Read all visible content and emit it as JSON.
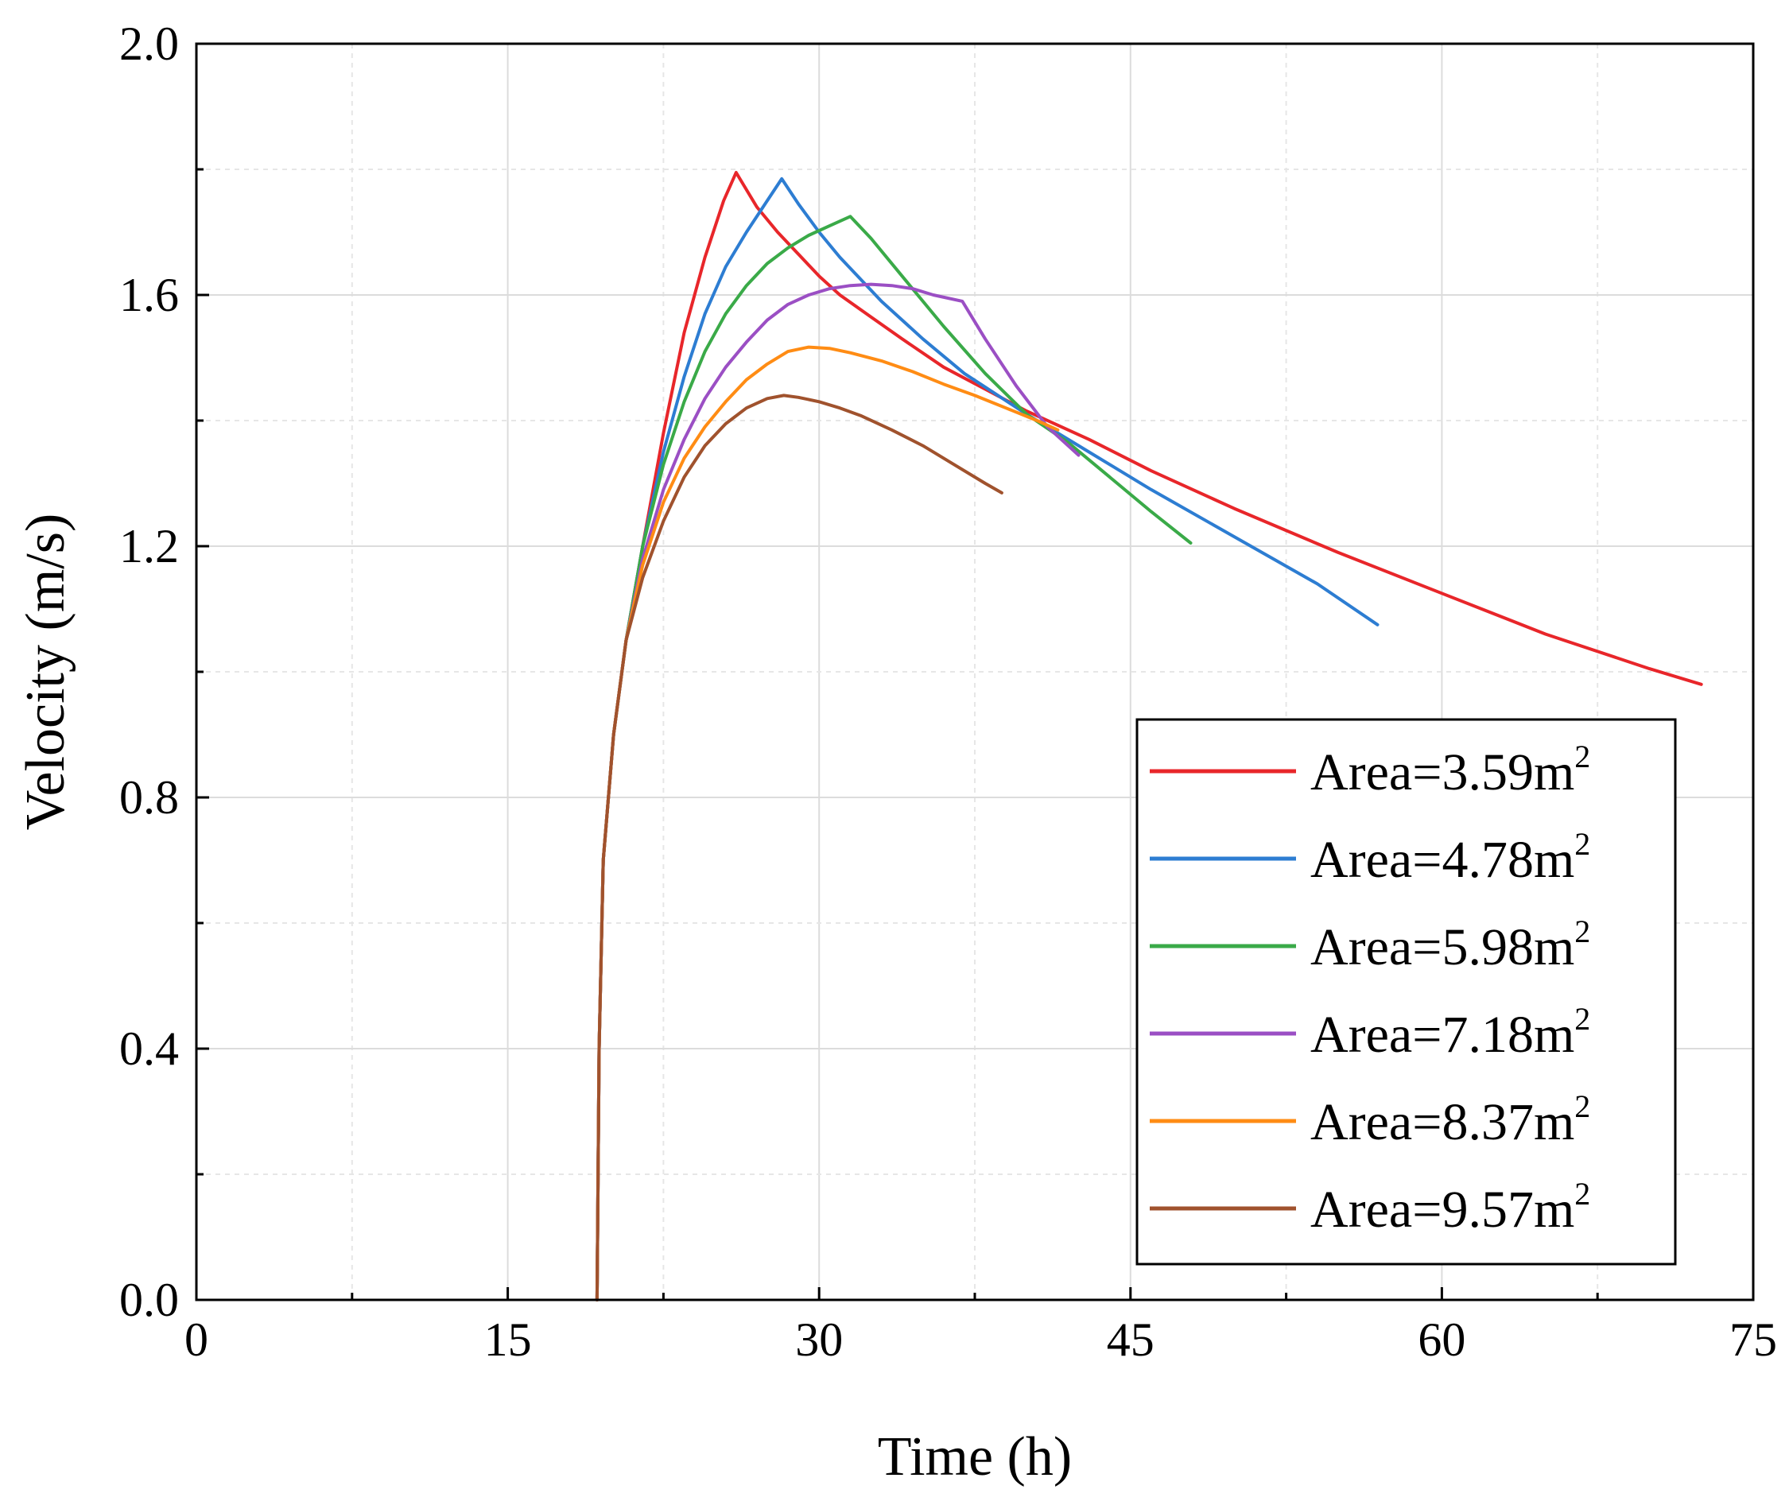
{
  "chart_data": {
    "type": "line",
    "title": "",
    "xlabel": "Time (h)",
    "ylabel": "Velocity (m/s)",
    "xlim": [
      0,
      75
    ],
    "ylim": [
      0,
      2.0
    ],
    "x_major_ticks": [
      0,
      15,
      30,
      45,
      60,
      75
    ],
    "x_tick_labels": [
      "0",
      "15",
      "30",
      "45",
      "60",
      "75"
    ],
    "x_minor_ticks": [
      7.5,
      22.5,
      37.5,
      52.5,
      67.5
    ],
    "y_major_ticks": [
      0,
      0.4,
      0.8,
      1.2,
      1.6,
      2.0
    ],
    "y_tick_labels": [
      "0.0",
      "0.4",
      "0.8",
      "1.2",
      "1.6",
      "2.0"
    ],
    "y_minor_ticks": [
      0.2,
      0.6,
      1.0,
      1.4,
      1.8
    ],
    "grid": true,
    "legend_position": "bottom-right",
    "series": [
      {
        "name": "Area=3.59m2",
        "legend_prefix": "Area=3.59m",
        "legend_sup": "2",
        "color": "#e8262a",
        "points": [
          [
            19.3,
            0
          ],
          [
            19.4,
            0.4
          ],
          [
            19.6,
            0.7
          ],
          [
            20.1,
            0.9
          ],
          [
            20.7,
            1.05
          ],
          [
            21.5,
            1.2
          ],
          [
            22.5,
            1.38
          ],
          [
            23.5,
            1.54
          ],
          [
            24.5,
            1.66
          ],
          [
            25.4,
            1.75
          ],
          [
            26.0,
            1.795
          ],
          [
            27.0,
            1.74
          ],
          [
            28.0,
            1.7
          ],
          [
            29.0,
            1.665
          ],
          [
            30.0,
            1.63
          ],
          [
            31.0,
            1.6
          ],
          [
            32.5,
            1.565
          ],
          [
            34.0,
            1.53
          ],
          [
            36.0,
            1.485
          ],
          [
            38.0,
            1.45
          ],
          [
            40.0,
            1.415
          ],
          [
            43.0,
            1.37
          ],
          [
            46.0,
            1.32
          ],
          [
            50.0,
            1.26
          ],
          [
            55.0,
            1.19
          ],
          [
            60.0,
            1.125
          ],
          [
            65.0,
            1.06
          ],
          [
            70.0,
            1.005
          ],
          [
            72.5,
            0.98
          ]
        ]
      },
      {
        "name": "Area=4.78m2",
        "legend_prefix": "Area=4.78m",
        "legend_sup": "2",
        "color": "#2d7dd2",
        "points": [
          [
            19.3,
            0
          ],
          [
            19.4,
            0.4
          ],
          [
            19.6,
            0.7
          ],
          [
            20.1,
            0.9
          ],
          [
            20.7,
            1.05
          ],
          [
            21.5,
            1.2
          ],
          [
            22.5,
            1.35
          ],
          [
            23.5,
            1.47
          ],
          [
            24.5,
            1.57
          ],
          [
            25.5,
            1.645
          ],
          [
            26.5,
            1.7
          ],
          [
            27.5,
            1.75
          ],
          [
            28.2,
            1.785
          ],
          [
            29.0,
            1.745
          ],
          [
            30.0,
            1.7
          ],
          [
            31.0,
            1.66
          ],
          [
            33.0,
            1.59
          ],
          [
            35.0,
            1.53
          ],
          [
            37.0,
            1.475
          ],
          [
            40.0,
            1.41
          ],
          [
            43.0,
            1.35
          ],
          [
            46.0,
            1.29
          ],
          [
            50.0,
            1.215
          ],
          [
            54.0,
            1.14
          ],
          [
            56.9,
            1.075
          ]
        ]
      },
      {
        "name": "Area=5.98m2",
        "legend_prefix": "Area=5.98m",
        "legend_sup": "2",
        "color": "#3aaa48",
        "points": [
          [
            19.3,
            0
          ],
          [
            19.4,
            0.4
          ],
          [
            19.6,
            0.7
          ],
          [
            20.1,
            0.9
          ],
          [
            20.7,
            1.05
          ],
          [
            21.5,
            1.2
          ],
          [
            22.5,
            1.33
          ],
          [
            23.5,
            1.43
          ],
          [
            24.5,
            1.51
          ],
          [
            25.5,
            1.57
          ],
          [
            26.5,
            1.615
          ],
          [
            27.5,
            1.65
          ],
          [
            28.5,
            1.675
          ],
          [
            29.5,
            1.695
          ],
          [
            30.5,
            1.71
          ],
          [
            31.5,
            1.725
          ],
          [
            32.5,
            1.69
          ],
          [
            34.0,
            1.63
          ],
          [
            36.0,
            1.55
          ],
          [
            38.0,
            1.475
          ],
          [
            40.0,
            1.41
          ],
          [
            42.0,
            1.365
          ],
          [
            44.0,
            1.31
          ],
          [
            46.0,
            1.255
          ],
          [
            47.9,
            1.205
          ]
        ]
      },
      {
        "name": "Area=7.18m2",
        "legend_prefix": "Area=7.18m",
        "legend_sup": "2",
        "color": "#9b4fc4",
        "points": [
          [
            19.3,
            0
          ],
          [
            19.4,
            0.4
          ],
          [
            19.6,
            0.7
          ],
          [
            20.1,
            0.9
          ],
          [
            20.7,
            1.05
          ],
          [
            21.5,
            1.18
          ],
          [
            22.5,
            1.29
          ],
          [
            23.5,
            1.37
          ],
          [
            24.5,
            1.435
          ],
          [
            25.5,
            1.485
          ],
          [
            26.5,
            1.525
          ],
          [
            27.5,
            1.56
          ],
          [
            28.5,
            1.585
          ],
          [
            29.5,
            1.6
          ],
          [
            30.5,
            1.61
          ],
          [
            31.5,
            1.615
          ],
          [
            32.5,
            1.617
          ],
          [
            33.5,
            1.615
          ],
          [
            34.5,
            1.61
          ],
          [
            35.5,
            1.6
          ],
          [
            36.9,
            1.59
          ],
          [
            38.0,
            1.53
          ],
          [
            39.5,
            1.455
          ],
          [
            41.0,
            1.39
          ],
          [
            42.5,
            1.345
          ]
        ]
      },
      {
        "name": "Area=8.37m2",
        "legend_prefix": "Area=8.37m",
        "legend_sup": "2",
        "color": "#ff8c14",
        "points": [
          [
            19.3,
            0
          ],
          [
            19.4,
            0.4
          ],
          [
            19.6,
            0.7
          ],
          [
            20.1,
            0.9
          ],
          [
            20.7,
            1.05
          ],
          [
            21.5,
            1.17
          ],
          [
            22.5,
            1.27
          ],
          [
            23.5,
            1.34
          ],
          [
            24.5,
            1.39
          ],
          [
            25.5,
            1.43
          ],
          [
            26.5,
            1.465
          ],
          [
            27.5,
            1.49
          ],
          [
            28.5,
            1.51
          ],
          [
            29.5,
            1.517
          ],
          [
            30.5,
            1.515
          ],
          [
            31.5,
            1.508
          ],
          [
            33.0,
            1.495
          ],
          [
            34.5,
            1.478
          ],
          [
            36.0,
            1.458
          ],
          [
            37.5,
            1.44
          ],
          [
            39.0,
            1.42
          ],
          [
            40.5,
            1.4
          ],
          [
            41.5,
            1.385
          ]
        ]
      },
      {
        "name": "Area=9.57m2",
        "legend_prefix": "Area=9.57m",
        "legend_sup": "2",
        "color": "#a0522d",
        "points": [
          [
            19.3,
            0
          ],
          [
            19.4,
            0.4
          ],
          [
            19.6,
            0.7
          ],
          [
            20.1,
            0.9
          ],
          [
            20.7,
            1.05
          ],
          [
            21.5,
            1.15
          ],
          [
            22.5,
            1.24
          ],
          [
            23.5,
            1.31
          ],
          [
            24.5,
            1.36
          ],
          [
            25.5,
            1.395
          ],
          [
            26.5,
            1.42
          ],
          [
            27.5,
            1.435
          ],
          [
            28.3,
            1.44
          ],
          [
            29.0,
            1.437
          ],
          [
            30.0,
            1.43
          ],
          [
            31.0,
            1.42
          ],
          [
            32.0,
            1.408
          ],
          [
            33.5,
            1.385
          ],
          [
            35.0,
            1.36
          ],
          [
            36.5,
            1.33
          ],
          [
            38.0,
            1.3
          ],
          [
            38.8,
            1.285
          ]
        ]
      }
    ]
  }
}
